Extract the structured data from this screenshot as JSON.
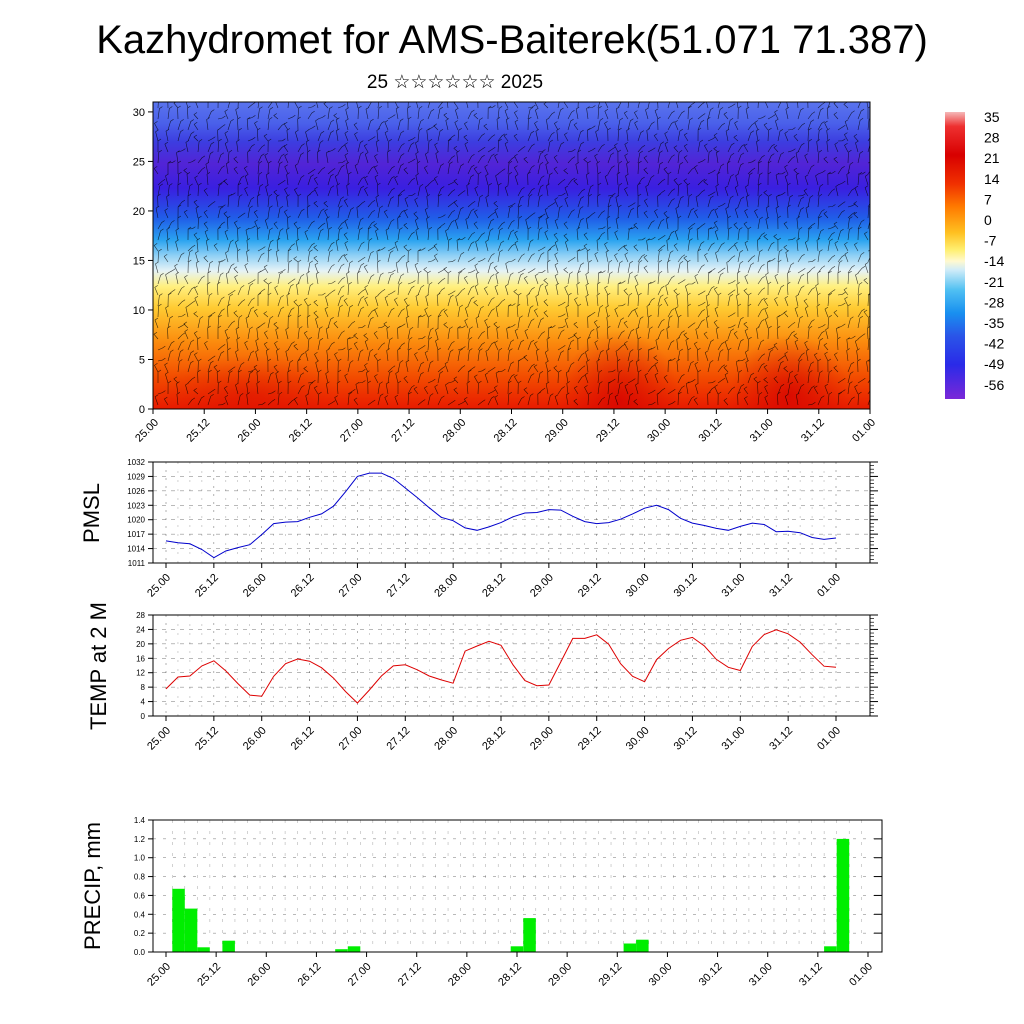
{
  "title": "Kazhydromet for AMS-Baiterek(51.071 71.387)",
  "subtitle": "25 ☆☆☆☆☆☆ 2025",
  "colors": {
    "pmsl_line": "#0000cc",
    "temp_line": "#dd0000",
    "precip_bar": "#00ee00",
    "grid": "#000000"
  },
  "chart_data": [
    {
      "type": "heatmap",
      "name": "cross-section",
      "x_tick_labels": [
        "25.00",
        "25.12",
        "26.00",
        "26.12",
        "27.00",
        "27.12",
        "28.00",
        "28.12",
        "29.00",
        "29.12",
        "30.00",
        "30.12",
        "31.00",
        "31.12",
        "01.00"
      ],
      "y_tick_labels": [
        "0",
        "5",
        "10",
        "15",
        "20",
        "25",
        "30"
      ],
      "ylim": [
        0,
        31
      ],
      "colorbar_labels": [
        "35",
        "28",
        "21",
        "14",
        "7",
        "0",
        "-7",
        "-14",
        "-21",
        "-28",
        "-35",
        "-42",
        "-49",
        "-56"
      ],
      "colorbar_range": [
        -63,
        38
      ],
      "notes_visual": "temperature shading with black wind barbs"
    },
    {
      "type": "line",
      "name": "pmsl",
      "ylabel": "PMSL",
      "ylim": [
        1011,
        1032
      ],
      "y_ticks": [
        "1011",
        "1014",
        "1017",
        "1020",
        "1023",
        "1026",
        "1029",
        "1032"
      ],
      "x_tick_labels": [
        "25.00",
        "25.12",
        "26.00",
        "26.12",
        "27.00",
        "27.12",
        "28.00",
        "28.12",
        "29.00",
        "29.12",
        "30.00",
        "30.12",
        "31.00",
        "31.12",
        "01.00"
      ],
      "values": [
        1015.6,
        1015.2,
        1015.0,
        1013.8,
        1012.1,
        1013.5,
        1014.2,
        1014.8,
        1016.9,
        1019.2,
        1019.5,
        1019.6,
        1020.5,
        1021.2,
        1022.8,
        1025.8,
        1029.0,
        1029.7,
        1029.7,
        1028.6,
        1026.6,
        1024.6,
        1022.5,
        1020.5,
        1019.8,
        1018.3,
        1017.8,
        1018.5,
        1019.4,
        1020.6,
        1021.4,
        1021.5,
        1022.1,
        1022.0,
        1020.7,
        1019.6,
        1019.2,
        1019.4,
        1020.1,
        1021.2,
        1022.4,
        1023.0,
        1022.1,
        1020.3,
        1019.3,
        1018.8,
        1018.2,
        1017.8,
        1018.6,
        1019.3,
        1019.0,
        1017.5,
        1017.6,
        1017.3,
        1016.3,
        1015.9,
        1016.2
      ]
    },
    {
      "type": "line",
      "name": "temp2m",
      "ylabel": "TEMP at 2 M",
      "ylim": [
        0,
        28
      ],
      "y_ticks": [
        "0",
        "4",
        "8",
        "12",
        "16",
        "20",
        "24",
        "28"
      ],
      "x_tick_labels": [
        "25.00",
        "25.12",
        "26.00",
        "26.12",
        "27.00",
        "27.12",
        "28.00",
        "28.12",
        "29.00",
        "29.12",
        "30.00",
        "30.12",
        "31.00",
        "31.12",
        "01.00"
      ],
      "values": [
        7.5,
        10.8,
        11.1,
        13.9,
        15.3,
        12.5,
        9.0,
        5.8,
        5.5,
        11.0,
        14.5,
        15.8,
        15.2,
        13.4,
        10.5,
        6.8,
        3.6,
        7.2,
        11.1,
        13.9,
        14.2,
        12.8,
        11.1,
        10.0,
        9.1,
        18.0,
        19.4,
        20.7,
        19.6,
        14.2,
        9.8,
        8.4,
        8.6,
        15.0,
        21.5,
        21.5,
        22.5,
        19.9,
        14.5,
        11.0,
        9.5,
        15.6,
        18.7,
        21.0,
        21.8,
        19.4,
        15.7,
        13.5,
        12.6,
        19.3,
        22.6,
        23.9,
        22.8,
        20.5,
        17.0,
        13.8,
        13.5
      ]
    },
    {
      "type": "bar",
      "name": "precip",
      "ylabel": "PRECIP, mm",
      "ylim": [
        0,
        1.4
      ],
      "y_ticks": [
        "0.0",
        "0.2",
        "0.4",
        "0.6",
        "0.8",
        "1.0",
        "1.2",
        "1.4"
      ],
      "x_tick_labels": [
        "25.00",
        "25.12",
        "26.00",
        "26.12",
        "27.00",
        "27.12",
        "28.00",
        "28.12",
        "29.00",
        "29.12",
        "30.00",
        "30.12",
        "31.00",
        "31.12",
        "01.00"
      ],
      "bars": [
        {
          "i": 1,
          "v": 0.67
        },
        {
          "i": 2,
          "v": 0.46
        },
        {
          "i": 3,
          "v": 0.05
        },
        {
          "i": 5,
          "v": 0.12
        },
        {
          "i": 14,
          "v": 0.03
        },
        {
          "i": 15,
          "v": 0.06
        },
        {
          "i": 28,
          "v": 0.06
        },
        {
          "i": 29,
          "v": 0.36
        },
        {
          "i": 37,
          "v": 0.09
        },
        {
          "i": 38,
          "v": 0.13
        },
        {
          "i": 53,
          "v": 0.06
        },
        {
          "i": 54,
          "v": 1.2
        }
      ]
    }
  ]
}
